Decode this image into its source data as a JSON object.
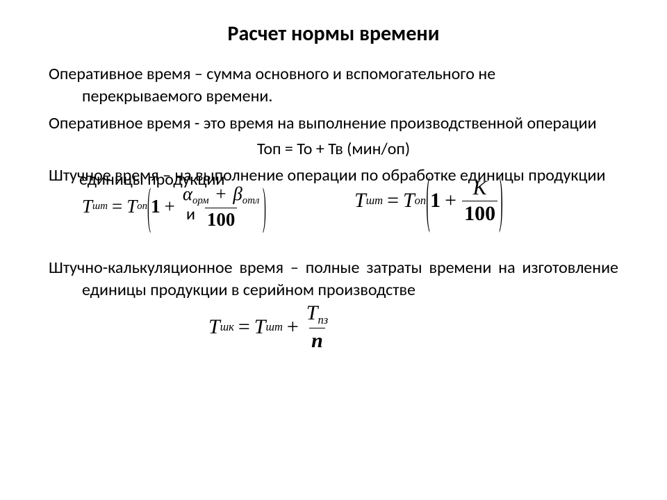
{
  "title": "Расчет нормы времени",
  "p1": "Оперативное время – сумма основного и вспомогательного не перекрываемого времени.",
  "p2": "Оперативное время  - это время на выполнение производственной операции",
  "eq_top": "Топ = То + Тв  (мин/оп)",
  "p3": "Штучное время – на выполнение операции по обработке единицы продукции",
  "connector": "и",
  "p4": "Штучно-калькуляционное время – полные затраты времени на изготовление единицы продукции в серийном производстве",
  "sym": {
    "T": "T",
    "eq": "=",
    "plus": "+",
    "one": "1",
    "K": "K",
    "hundred": "100",
    "n": "n",
    "alpha": "α",
    "beta": "β"
  },
  "sub": {
    "sht": "шт",
    "op": "оп",
    "orm": "орм",
    "otl": "отл",
    "shk": "шк",
    "pz": "пз"
  },
  "colors": {
    "text": "#000000",
    "bg": "#ffffff"
  }
}
